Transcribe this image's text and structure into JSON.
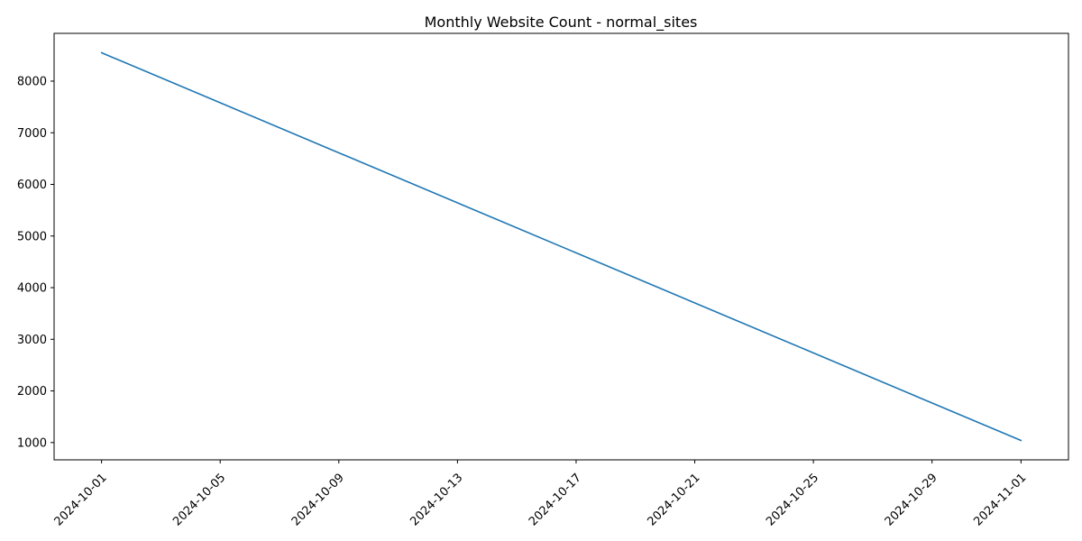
{
  "chart_data": {
    "type": "line",
    "title": "Monthly Website Count - normal_sites",
    "xlabel": "",
    "ylabel": "",
    "x": [
      "2024-10-01",
      "2024-11-01"
    ],
    "series": [
      {
        "name": "normal_sites",
        "color": "#1f77b4",
        "x": [
          "2024-10-01",
          "2024-11-01"
        ],
        "values": [
          8550,
          1040
        ]
      }
    ],
    "xlim": [
      "2024-09-29.4",
      "2024-11-02.6"
    ],
    "ylim": [
      665,
      8925
    ],
    "xticks": [
      "2024-10-01",
      "2024-10-05",
      "2024-10-09",
      "2024-10-13",
      "2024-10-17",
      "2024-10-21",
      "2024-10-25",
      "2024-10-29",
      "2024-11-01"
    ],
    "yticks": [
      1000,
      2000,
      3000,
      4000,
      5000,
      6000,
      7000,
      8000
    ],
    "ytick_labels": [
      "1000",
      "2000",
      "3000",
      "4000",
      "5000",
      "6000",
      "7000",
      "8000"
    ],
    "grid": false,
    "legend": "none"
  }
}
